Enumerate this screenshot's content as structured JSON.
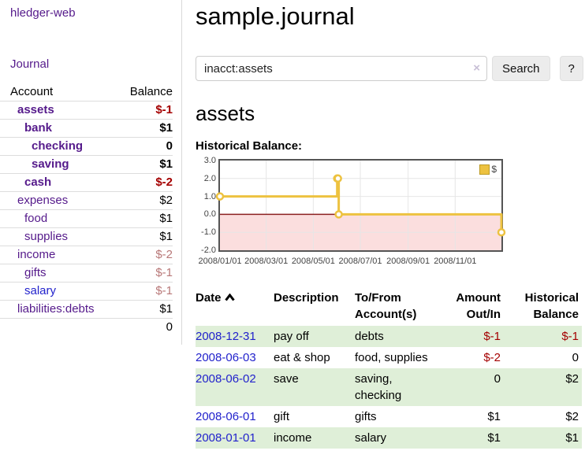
{
  "app": {
    "brand": "hledger-web",
    "nav_journal": "Journal"
  },
  "sidebar": {
    "headers": {
      "account": "Account",
      "balance": "Balance"
    },
    "accounts": [
      {
        "name": "assets",
        "indent": 1,
        "bold": true,
        "link": "purple",
        "balance": "$-1",
        "balance_class": "neg-strong"
      },
      {
        "name": "bank",
        "indent": 2,
        "bold": true,
        "link": "purple",
        "balance": "$1",
        "balance_class": "pos"
      },
      {
        "name": "checking",
        "indent": 3,
        "bold": true,
        "link": "purple",
        "balance": "0",
        "balance_class": "pos"
      },
      {
        "name": "saving",
        "indent": 3,
        "bold": true,
        "link": "purple",
        "balance": "$1",
        "balance_class": "pos"
      },
      {
        "name": "cash",
        "indent": 2,
        "bold": true,
        "link": "purple",
        "balance": "$-2",
        "balance_class": "neg-strong"
      },
      {
        "name": "expenses",
        "indent": 1,
        "bold": false,
        "link": "purple",
        "balance": "$2",
        "balance_class": "pos"
      },
      {
        "name": "food",
        "indent": 2,
        "bold": false,
        "link": "purple",
        "balance": "$1",
        "balance_class": "pos"
      },
      {
        "name": "supplies",
        "indent": 2,
        "bold": false,
        "link": "purple",
        "balance": "$1",
        "balance_class": "pos"
      },
      {
        "name": "income",
        "indent": 1,
        "bold": false,
        "link": "purple",
        "balance": "$-2",
        "balance_class": "neg-soft"
      },
      {
        "name": "gifts",
        "indent": 2,
        "bold": false,
        "link": "purple",
        "balance": "$-1",
        "balance_class": "neg-soft"
      },
      {
        "name": "salary",
        "indent": 2,
        "bold": false,
        "link": "blue",
        "balance": "$-1",
        "balance_class": "neg-soft"
      },
      {
        "name": "liabilities:debts",
        "indent": 1,
        "bold": false,
        "link": "purple",
        "balance": "$1",
        "balance_class": "pos"
      }
    ],
    "total_balance": "0"
  },
  "main": {
    "title": "sample.journal",
    "search": {
      "value": "inacct:assets",
      "clear_icon": "×",
      "button_label": "Search",
      "help_label": "?"
    },
    "account_heading": "assets"
  },
  "chart_data": {
    "type": "line",
    "step": true,
    "title": "Historical Balance:",
    "series": [
      {
        "name": "$",
        "x": [
          "2008/01/01",
          "2008/06/01",
          "2008/06/02",
          "2008/06/03",
          "2008/12/31"
        ],
        "values": [
          1,
          2,
          2,
          0,
          -1
        ]
      }
    ],
    "xlim": [
      "2008/01/01",
      "2008/12/31"
    ],
    "ylim": [
      -2,
      3
    ],
    "x_ticks": [
      "2008/01/01",
      "2008/03/01",
      "2008/05/01",
      "2008/07/01",
      "2008/09/01",
      "2008/11/01"
    ],
    "y_tick_labels": [
      "3.0",
      "2.0",
      "1.0",
      "0.0",
      "-1.0",
      "-2.0"
    ],
    "legend": {
      "label": "$",
      "position": "top-right"
    },
    "colors": {
      "line": "#EDC240",
      "marker_fill": "#FFFFFF",
      "negative_region": "#FBDEDE",
      "zero_line": "#8B2020",
      "grid": "#E6E6E6",
      "border": "#545454"
    }
  },
  "register": {
    "headers": [
      "Date",
      "Description",
      "To/From Account(s)",
      "Amount Out/In",
      "Historical Balance"
    ],
    "sort": {
      "column": "Date",
      "direction": "ascending"
    },
    "rows": [
      {
        "date": "2008-12-31",
        "description": "pay off",
        "accounts": "debts",
        "amount": "$-1",
        "amount_neg": true,
        "balance": "$-1",
        "balance_neg": true
      },
      {
        "date": "2008-06-03",
        "description": "eat & shop",
        "accounts": "food, supplies",
        "amount": "$-2",
        "amount_neg": true,
        "balance": "0",
        "balance_neg": false
      },
      {
        "date": "2008-06-02",
        "description": "save",
        "accounts": "saving, checking",
        "amount": "0",
        "amount_neg": false,
        "balance": "$2",
        "balance_neg": false
      },
      {
        "date": "2008-06-01",
        "description": "gift",
        "accounts": "gifts",
        "amount": "$1",
        "amount_neg": false,
        "balance": "$2",
        "balance_neg": false
      },
      {
        "date": "2008-01-01",
        "description": "income",
        "accounts": "salary",
        "amount": "$1",
        "amount_neg": false,
        "balance": "$1",
        "balance_neg": false
      }
    ]
  }
}
